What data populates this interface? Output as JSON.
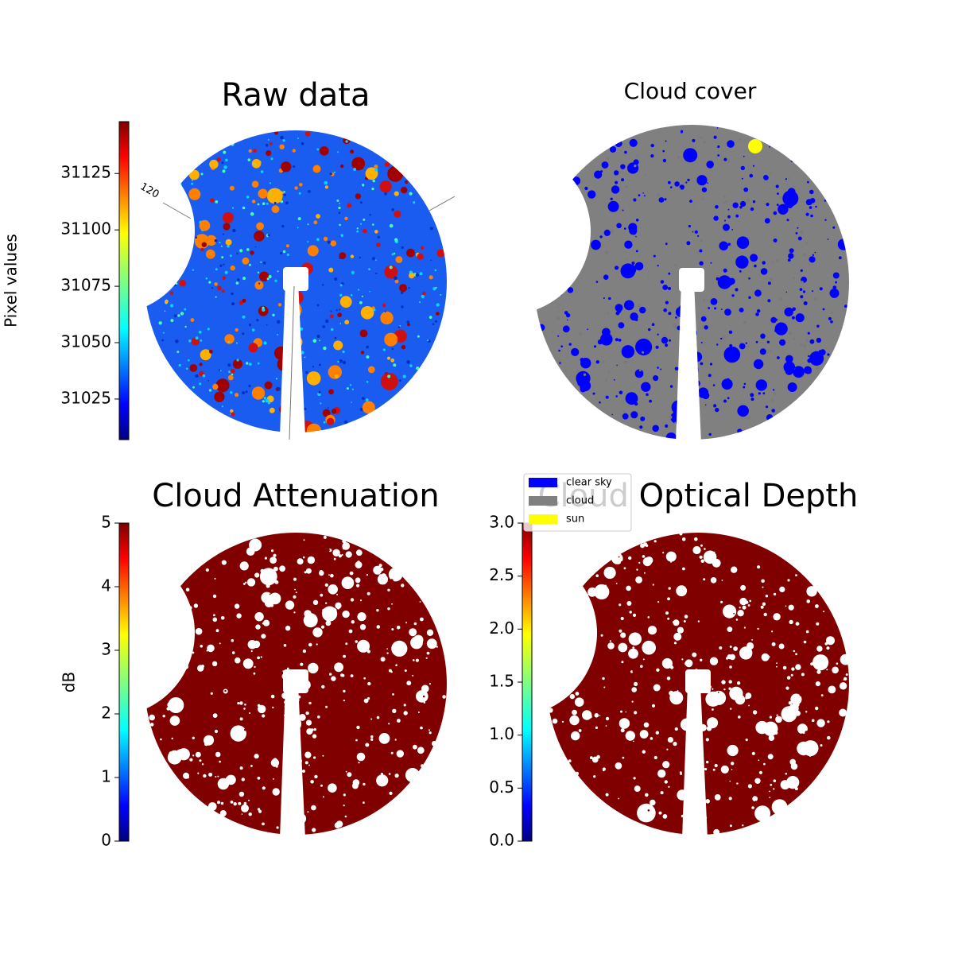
{
  "chart_data": [
    {
      "type": "image",
      "title": "Raw data",
      "colorbar_label": "Pixel values",
      "colormap": "jet",
      "clim": [
        31007,
        31148
      ],
      "ticks": [
        31025,
        31050,
        31075,
        31100,
        31125
      ],
      "grid_label": "120"
    },
    {
      "type": "image",
      "title": "Cloud cover",
      "legend": [
        {
          "label": "clear sky",
          "color": "#0000ff"
        },
        {
          "label": "cloud",
          "color": "#808080"
        },
        {
          "label": "sun",
          "color": "#ffff00"
        }
      ]
    },
    {
      "type": "image",
      "title": "Cloud Attenuation",
      "colorbar_label": "dB",
      "colormap": "jet",
      "clim": [
        0,
        5
      ],
      "ticks": [
        0,
        1,
        2,
        3,
        4,
        5
      ]
    },
    {
      "type": "image",
      "title": "Cloud Optical Depth",
      "colormap": "jet",
      "clim": [
        0,
        3
      ],
      "ticks": [
        {
          "value": 0,
          "label": "0.0"
        },
        0.5,
        {
          "value": 1,
          "label": "1.0"
        },
        1.5,
        {
          "value": 2,
          "label": "2.0"
        },
        2.5,
        {
          "value": 3,
          "label": "3.0"
        }
      ]
    }
  ]
}
